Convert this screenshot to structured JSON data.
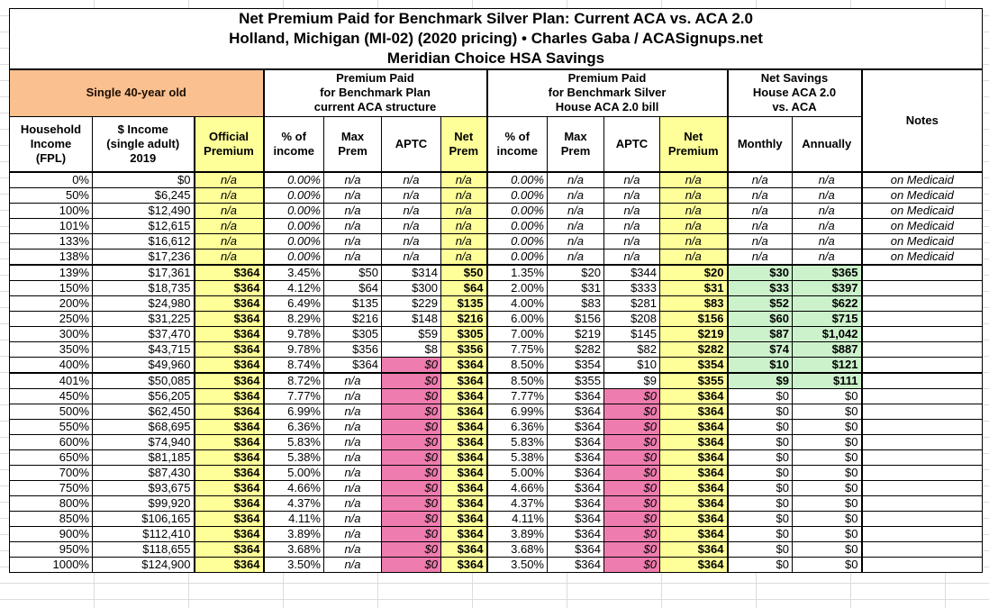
{
  "title": {
    "text": "Net Premium Paid for Benchmark Silver Plan: Current ACA vs. ACA 2.0\nHolland, Michigan (MI-02) (2020 pricing) • Charles Gaba / ACASignups.net\nMeridian Choice HSA Savings"
  },
  "groups": {
    "subject": "Single 40-year old",
    "aca": "Premium Paid\nfor Benchmark Plan\ncurrent ACA structure",
    "house": "Premium Paid\nfor Benchmark Silver\nHouse ACA 2.0 bill",
    "savings": "Net Savings\nHouse ACA 2.0\nvs. ACA",
    "notes": "Notes"
  },
  "columns": {
    "fpl": "Household\nIncome\n(FPL)",
    "income": "$ Income\n(single adult)\n2019",
    "official": "Official\nPremium",
    "aca_pct": "% of\nincome",
    "aca_max": "Max\nPrem",
    "aca_aptc": "APTC",
    "aca_net": "Net\nPrem",
    "house_pct": "% of\nincome",
    "house_max": "Max\nPrem",
    "house_aptc": "APTC",
    "house_net": "Net\nPremium",
    "monthly": "Monthly",
    "annually": "Annually"
  },
  "colors": {
    "orange": "#FAC090",
    "yellow": "#FFFF99",
    "pink": "#EE7CAE",
    "green": "#CCF2CC"
  },
  "rows": [
    {
      "fpl": "0%",
      "income": "$0",
      "official": "n/a",
      "aca_pct": "0.00%",
      "aca_max": "n/a",
      "aca_aptc": "n/a",
      "aca_net": "n/a",
      "house_pct": "0.00%",
      "house_max": "n/a",
      "house_aptc": "n/a",
      "house_net": "n/a",
      "monthly": "n/a",
      "annually": "n/a",
      "note": "on Medicaid",
      "medicaid": true
    },
    {
      "fpl": "50%",
      "income": "$6,245",
      "official": "n/a",
      "aca_pct": "0.00%",
      "aca_max": "n/a",
      "aca_aptc": "n/a",
      "aca_net": "n/a",
      "house_pct": "0.00%",
      "house_max": "n/a",
      "house_aptc": "n/a",
      "house_net": "n/a",
      "monthly": "n/a",
      "annually": "n/a",
      "note": "on Medicaid",
      "medicaid": true
    },
    {
      "fpl": "100%",
      "income": "$12,490",
      "official": "n/a",
      "aca_pct": "0.00%",
      "aca_max": "n/a",
      "aca_aptc": "n/a",
      "aca_net": "n/a",
      "house_pct": "0.00%",
      "house_max": "n/a",
      "house_aptc": "n/a",
      "house_net": "n/a",
      "monthly": "n/a",
      "annually": "n/a",
      "note": "on Medicaid",
      "medicaid": true
    },
    {
      "fpl": "101%",
      "income": "$12,615",
      "official": "n/a",
      "aca_pct": "0.00%",
      "aca_max": "n/a",
      "aca_aptc": "n/a",
      "aca_net": "n/a",
      "house_pct": "0.00%",
      "house_max": "n/a",
      "house_aptc": "n/a",
      "house_net": "n/a",
      "monthly": "n/a",
      "annually": "n/a",
      "note": "on Medicaid",
      "medicaid": true
    },
    {
      "fpl": "133%",
      "income": "$16,612",
      "official": "n/a",
      "aca_pct": "0.00%",
      "aca_max": "n/a",
      "aca_aptc": "n/a",
      "aca_net": "n/a",
      "house_pct": "0.00%",
      "house_max": "n/a",
      "house_aptc": "n/a",
      "house_net": "n/a",
      "monthly": "n/a",
      "annually": "n/a",
      "note": "on Medicaid",
      "medicaid": true
    },
    {
      "fpl": "138%",
      "income": "$17,236",
      "official": "n/a",
      "aca_pct": "0.00%",
      "aca_max": "n/a",
      "aca_aptc": "n/a",
      "aca_net": "n/a",
      "house_pct": "0.00%",
      "house_max": "n/a",
      "house_aptc": "n/a",
      "house_net": "n/a",
      "monthly": "n/a",
      "annually": "n/a",
      "note": "on Medicaid",
      "medicaid": true,
      "thick_bottom": true
    },
    {
      "fpl": "139%",
      "income": "$17,361",
      "official": "$364",
      "aca_pct": "3.45%",
      "aca_max": "$50",
      "aca_aptc": "$314",
      "aca_net": "$50",
      "house_pct": "1.35%",
      "house_max": "$20",
      "house_aptc": "$344",
      "house_net": "$20",
      "monthly": "$30",
      "annually": "$365",
      "note": "",
      "green": true
    },
    {
      "fpl": "150%",
      "income": "$18,735",
      "official": "$364",
      "aca_pct": "4.12%",
      "aca_max": "$64",
      "aca_aptc": "$300",
      "aca_net": "$64",
      "house_pct": "2.00%",
      "house_max": "$31",
      "house_aptc": "$333",
      "house_net": "$31",
      "monthly": "$33",
      "annually": "$397",
      "note": "",
      "green": true
    },
    {
      "fpl": "200%",
      "income": "$24,980",
      "official": "$364",
      "aca_pct": "6.49%",
      "aca_max": "$135",
      "aca_aptc": "$229",
      "aca_net": "$135",
      "house_pct": "4.00%",
      "house_max": "$83",
      "house_aptc": "$281",
      "house_net": "$83",
      "monthly": "$52",
      "annually": "$622",
      "note": "",
      "green": true
    },
    {
      "fpl": "250%",
      "income": "$31,225",
      "official": "$364",
      "aca_pct": "8.29%",
      "aca_max": "$216",
      "aca_aptc": "$148",
      "aca_net": "$216",
      "house_pct": "6.00%",
      "house_max": "$156",
      "house_aptc": "$208",
      "house_net": "$156",
      "monthly": "$60",
      "annually": "$715",
      "note": "",
      "green": true
    },
    {
      "fpl": "300%",
      "income": "$37,470",
      "official": "$364",
      "aca_pct": "9.78%",
      "aca_max": "$305",
      "aca_aptc": "$59",
      "aca_net": "$305",
      "house_pct": "7.00%",
      "house_max": "$219",
      "house_aptc": "$145",
      "house_net": "$219",
      "monthly": "$87",
      "annually": "$1,042",
      "note": "",
      "green": true
    },
    {
      "fpl": "350%",
      "income": "$43,715",
      "official": "$364",
      "aca_pct": "9.78%",
      "aca_max": "$356",
      "aca_aptc": "$8",
      "aca_net": "$356",
      "house_pct": "7.75%",
      "house_max": "$282",
      "house_aptc": "$82",
      "house_net": "$282",
      "monthly": "$74",
      "annually": "$887",
      "note": "",
      "green": true
    },
    {
      "fpl": "400%",
      "income": "$49,960",
      "official": "$364",
      "aca_pct": "8.74%",
      "aca_max": "$364",
      "aca_aptc": "$0",
      "aca_net": "$364",
      "house_pct": "8.50%",
      "house_max": "$354",
      "house_aptc": "$10",
      "house_net": "$354",
      "monthly": "$10",
      "annually": "$121",
      "note": "",
      "green": true,
      "aca_aptc_pink": true,
      "thick_bottom": true
    },
    {
      "fpl": "401%",
      "income": "$50,085",
      "official": "$364",
      "aca_pct": "8.72%",
      "aca_max": "n/a",
      "aca_aptc": "$0",
      "aca_net": "$364",
      "house_pct": "8.50%",
      "house_max": "$355",
      "house_aptc": "$9",
      "house_net": "$355",
      "monthly": "$9",
      "annually": "$111",
      "note": "",
      "green": true,
      "aca_aptc_pink": true
    },
    {
      "fpl": "450%",
      "income": "$56,205",
      "official": "$364",
      "aca_pct": "7.77%",
      "aca_max": "n/a",
      "aca_aptc": "$0",
      "aca_net": "$364",
      "house_pct": "7.77%",
      "house_max": "$364",
      "house_aptc": "$0",
      "house_net": "$364",
      "monthly": "$0",
      "annually": "$0",
      "note": "",
      "aca_aptc_pink": true,
      "house_aptc_pink": true
    },
    {
      "fpl": "500%",
      "income": "$62,450",
      "official": "$364",
      "aca_pct": "6.99%",
      "aca_max": "n/a",
      "aca_aptc": "$0",
      "aca_net": "$364",
      "house_pct": "6.99%",
      "house_max": "$364",
      "house_aptc": "$0",
      "house_net": "$364",
      "monthly": "$0",
      "annually": "$0",
      "note": "",
      "aca_aptc_pink": true,
      "house_aptc_pink": true
    },
    {
      "fpl": "550%",
      "income": "$68,695",
      "official": "$364",
      "aca_pct": "6.36%",
      "aca_max": "n/a",
      "aca_aptc": "$0",
      "aca_net": "$364",
      "house_pct": "6.36%",
      "house_max": "$364",
      "house_aptc": "$0",
      "house_net": "$364",
      "monthly": "$0",
      "annually": "$0",
      "note": "",
      "aca_aptc_pink": true,
      "house_aptc_pink": true
    },
    {
      "fpl": "600%",
      "income": "$74,940",
      "official": "$364",
      "aca_pct": "5.83%",
      "aca_max": "n/a",
      "aca_aptc": "$0",
      "aca_net": "$364",
      "house_pct": "5.83%",
      "house_max": "$364",
      "house_aptc": "$0",
      "house_net": "$364",
      "monthly": "$0",
      "annually": "$0",
      "note": "",
      "aca_aptc_pink": true,
      "house_aptc_pink": true
    },
    {
      "fpl": "650%",
      "income": "$81,185",
      "official": "$364",
      "aca_pct": "5.38%",
      "aca_max": "n/a",
      "aca_aptc": "$0",
      "aca_net": "$364",
      "house_pct": "5.38%",
      "house_max": "$364",
      "house_aptc": "$0",
      "house_net": "$364",
      "monthly": "$0",
      "annually": "$0",
      "note": "",
      "aca_aptc_pink": true,
      "house_aptc_pink": true
    },
    {
      "fpl": "700%",
      "income": "$87,430",
      "official": "$364",
      "aca_pct": "5.00%",
      "aca_max": "n/a",
      "aca_aptc": "$0",
      "aca_net": "$364",
      "house_pct": "5.00%",
      "house_max": "$364",
      "house_aptc": "$0",
      "house_net": "$364",
      "monthly": "$0",
      "annually": "$0",
      "note": "",
      "aca_aptc_pink": true,
      "house_aptc_pink": true
    },
    {
      "fpl": "750%",
      "income": "$93,675",
      "official": "$364",
      "aca_pct": "4.66%",
      "aca_max": "n/a",
      "aca_aptc": "$0",
      "aca_net": "$364",
      "house_pct": "4.66%",
      "house_max": "$364",
      "house_aptc": "$0",
      "house_net": "$364",
      "monthly": "$0",
      "annually": "$0",
      "note": "",
      "aca_aptc_pink": true,
      "house_aptc_pink": true
    },
    {
      "fpl": "800%",
      "income": "$99,920",
      "official": "$364",
      "aca_pct": "4.37%",
      "aca_max": "n/a",
      "aca_aptc": "$0",
      "aca_net": "$364",
      "house_pct": "4.37%",
      "house_max": "$364",
      "house_aptc": "$0",
      "house_net": "$364",
      "monthly": "$0",
      "annually": "$0",
      "note": "",
      "aca_aptc_pink": true,
      "house_aptc_pink": true
    },
    {
      "fpl": "850%",
      "income": "$106,165",
      "official": "$364",
      "aca_pct": "4.11%",
      "aca_max": "n/a",
      "aca_aptc": "$0",
      "aca_net": "$364",
      "house_pct": "4.11%",
      "house_max": "$364",
      "house_aptc": "$0",
      "house_net": "$364",
      "monthly": "$0",
      "annually": "$0",
      "note": "",
      "aca_aptc_pink": true,
      "house_aptc_pink": true
    },
    {
      "fpl": "900%",
      "income": "$112,410",
      "official": "$364",
      "aca_pct": "3.89%",
      "aca_max": "n/a",
      "aca_aptc": "$0",
      "aca_net": "$364",
      "house_pct": "3.89%",
      "house_max": "$364",
      "house_aptc": "$0",
      "house_net": "$364",
      "monthly": "$0",
      "annually": "$0",
      "note": "",
      "aca_aptc_pink": true,
      "house_aptc_pink": true
    },
    {
      "fpl": "950%",
      "income": "$118,655",
      "official": "$364",
      "aca_pct": "3.68%",
      "aca_max": "n/a",
      "aca_aptc": "$0",
      "aca_net": "$364",
      "house_pct": "3.68%",
      "house_max": "$364",
      "house_aptc": "$0",
      "house_net": "$364",
      "monthly": "$0",
      "annually": "$0",
      "note": "",
      "aca_aptc_pink": true,
      "house_aptc_pink": true
    },
    {
      "fpl": "1000%",
      "income": "$124,900",
      "official": "$364",
      "aca_pct": "3.50%",
      "aca_max": "n/a",
      "aca_aptc": "$0",
      "aca_net": "$364",
      "house_pct": "3.50%",
      "house_max": "$364",
      "house_aptc": "$0",
      "house_net": "$364",
      "monthly": "$0",
      "annually": "$0",
      "note": "",
      "aca_aptc_pink": true,
      "house_aptc_pink": true
    }
  ]
}
